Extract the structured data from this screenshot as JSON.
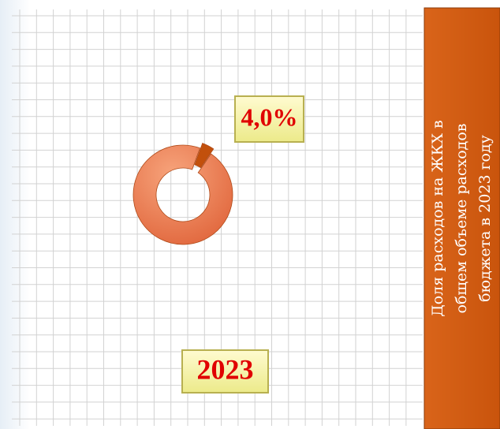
{
  "chart_data": {
    "type": "pie",
    "donut": true,
    "values": [
      4,
      96
    ],
    "value_labels": [
      "4,0%",
      null
    ],
    "colors": [
      "#c2500c",
      "#f08a5c"
    ],
    "label": "2023",
    "side_note": [
      "Доля расходов на ЖКХ в",
      "общем  объеме расходов",
      "бюджета в 2023 году"
    ]
  }
}
